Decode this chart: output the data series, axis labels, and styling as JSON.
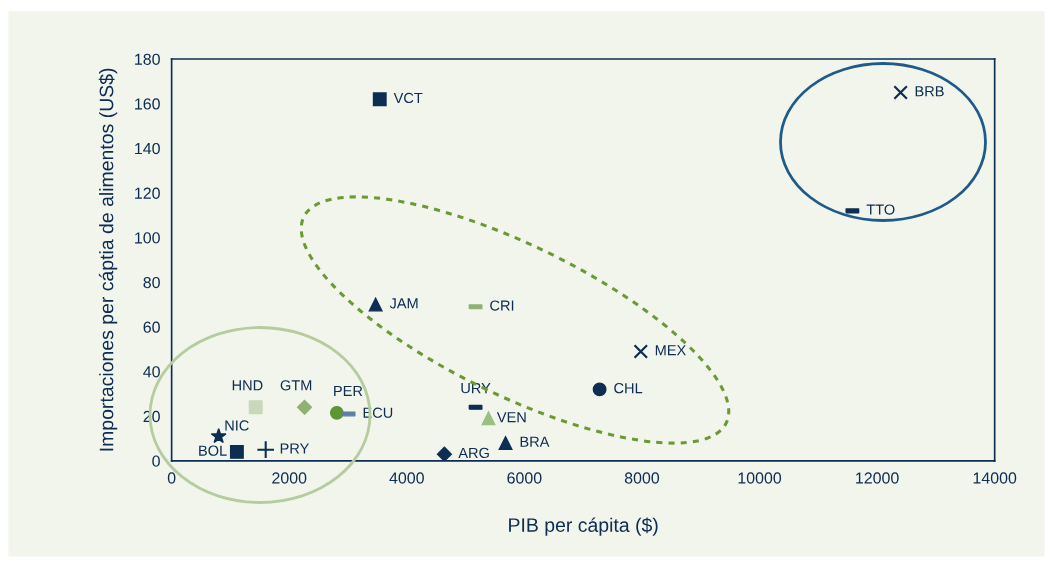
{
  "chart_data": {
    "type": "scatter",
    "xlabel": "PIB per cápita ($)",
    "ylabel": "Importaciones per cáptia de alimentos (US$)",
    "xlim": [
      0,
      14000
    ],
    "xticks": [
      0,
      2000,
      4000,
      6000,
      8000,
      10000,
      12000,
      14000
    ],
    "ylim": [
      0,
      180
    ],
    "yticks": [
      0,
      20,
      40,
      60,
      80,
      100,
      120,
      140,
      160,
      180
    ],
    "grid": false,
    "series": [
      {
        "name": "VCT",
        "color": "#0d2d52",
        "marker": "square",
        "x": [
          3540
        ],
        "values": [
          162
        ]
      },
      {
        "name": "BRB",
        "color": "#0d2d52",
        "marker": "cross",
        "x": [
          12400
        ],
        "values": [
          165
        ]
      },
      {
        "name": "TTO",
        "color": "#0d2d52",
        "marker": "square",
        "x": [
          11580
        ],
        "values": [
          112
        ]
      },
      {
        "name": "JAM",
        "color": "#0d2d52",
        "marker": "triangle",
        "x": [
          3470
        ],
        "values": [
          70
        ]
      },
      {
        "name": "CRI",
        "color": "#8fb174",
        "marker": "square",
        "x": [
          5170
        ],
        "values": [
          69
        ]
      },
      {
        "name": "MEX",
        "color": "#0d2d52",
        "marker": "cross",
        "x": [
          7980
        ],
        "values": [
          49
        ]
      },
      {
        "name": "CHL",
        "color": "#0d2d52",
        "marker": "circle",
        "x": [
          7280
        ],
        "values": [
          32
        ]
      },
      {
        "name": "URY",
        "color": "#0d2d52",
        "marker": "square",
        "x": [
          5170
        ],
        "values": [
          24
        ]
      },
      {
        "name": "VEN",
        "color": "#9bbf80",
        "marker": "triangle",
        "x": [
          5390
        ],
        "values": [
          19
        ]
      },
      {
        "name": "BRA",
        "color": "#0d2d52",
        "marker": "triangle",
        "x": [
          5680
        ],
        "values": [
          8
        ]
      },
      {
        "name": "ARG",
        "color": "#0d2d52",
        "marker": "diamond",
        "x": [
          4640
        ],
        "values": [
          3
        ]
      },
      {
        "name": "HND",
        "color": "#c8d8b8",
        "marker": "square",
        "x": [
          1430
        ],
        "values": [
          24
        ]
      },
      {
        "name": "GTM",
        "color": "#8fb174",
        "marker": "diamond",
        "x": [
          2260
        ],
        "values": [
          24
        ]
      },
      {
        "name": "PER",
        "color": "#5d9632",
        "marker": "circle",
        "x": [
          2810
        ],
        "values": [
          21.5
        ]
      },
      {
        "name": "ECU",
        "color": "#5b7fa6",
        "marker": "square",
        "x": [
          3010
        ],
        "values": [
          21
        ]
      },
      {
        "name": "NIC",
        "color": "#0d2d52",
        "marker": "star",
        "x": [
          800
        ],
        "values": [
          11
        ]
      },
      {
        "name": "BOL",
        "color": "#0d2d52",
        "marker": "square",
        "x": [
          1110
        ],
        "values": [
          4
        ]
      },
      {
        "name": "PRY",
        "color": "#0d2d52",
        "marker": "plus",
        "x": [
          1600
        ],
        "values": [
          5
        ]
      }
    ]
  }
}
